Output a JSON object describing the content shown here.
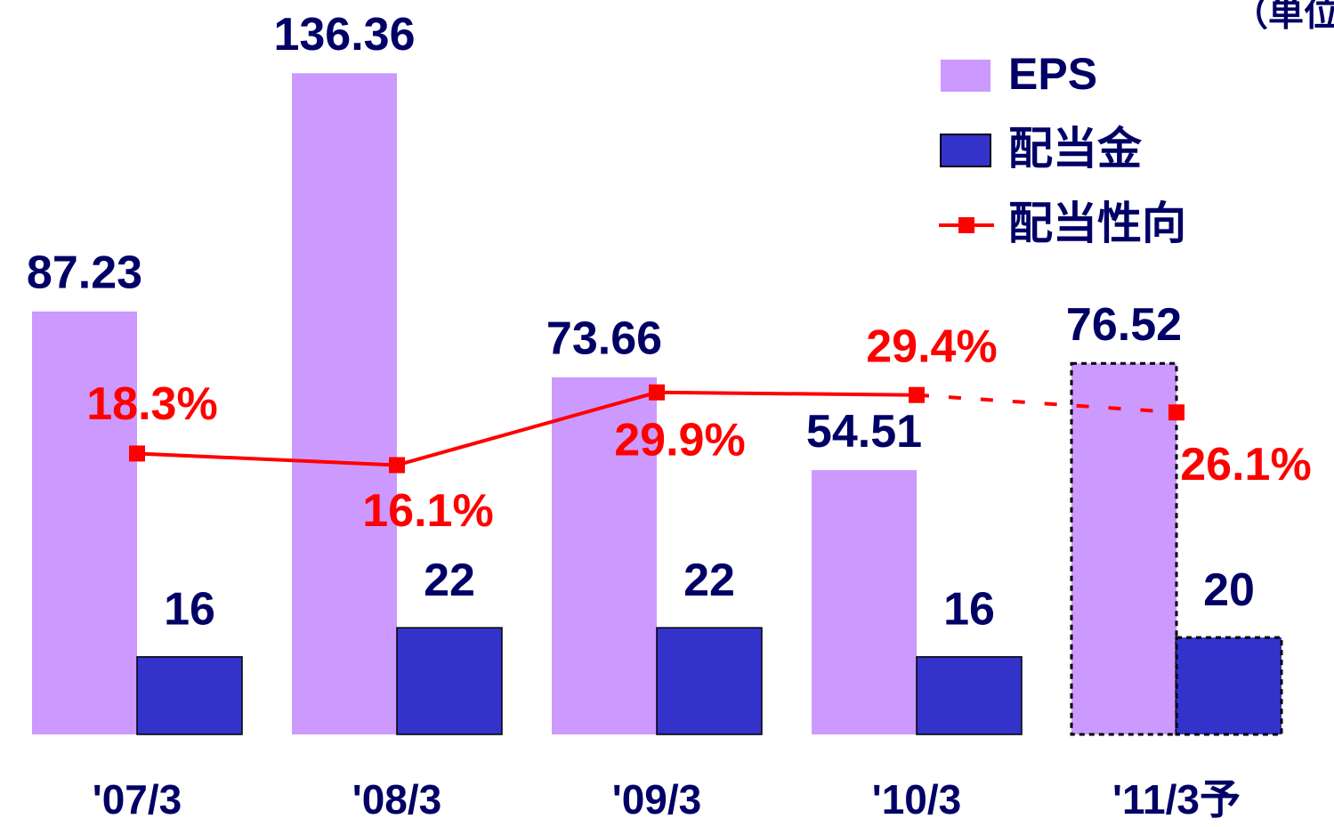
{
  "chart_data": {
    "type": "bar",
    "subtitle": "（単位",
    "categories": [
      "'07/3",
      "'08/3",
      "'09/3",
      "'10/3",
      "'11/3予"
    ],
    "ylim": [
      0,
      150
    ],
    "y2lim": [
      -35,
      103
    ],
    "series": [
      {
        "name": "EPS",
        "type": "bar",
        "color": "#cc99ff",
        "values": [
          87.23,
          136.36,
          73.66,
          54.51,
          76.52
        ]
      },
      {
        "name": "配当金",
        "type": "bar",
        "color": "#3333cc",
        "values": [
          16,
          22,
          22,
          16,
          20
        ]
      },
      {
        "name": "配当性向",
        "type": "line",
        "axis": "y2",
        "color": "#ff0000",
        "values": [
          18.3,
          16.1,
          29.9,
          29.4,
          26.1
        ],
        "value_labels": [
          "18.3%",
          "16.1%",
          "29.9%",
          "29.4%",
          "26.1%"
        ]
      }
    ]
  }
}
